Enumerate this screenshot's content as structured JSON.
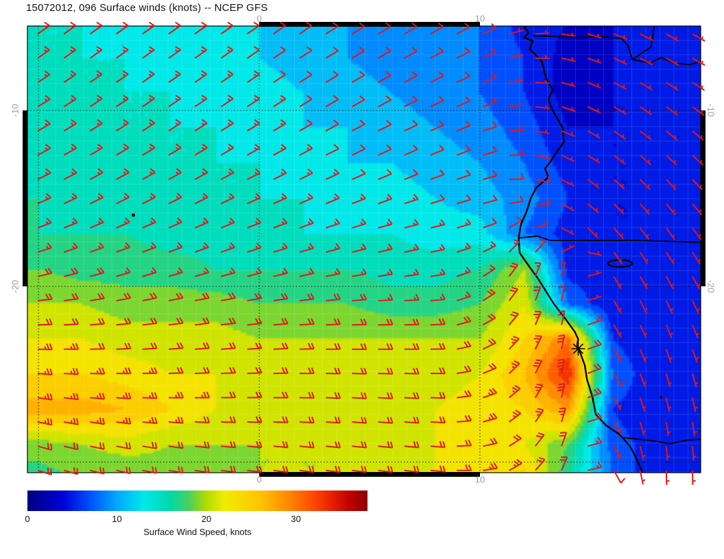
{
  "title": "15072012, 096 Surface winds (knots) -- NCEP GFS",
  "axes": {
    "x_ticks": [
      {
        "label": "0",
        "lon": 0
      },
      {
        "label": "10",
        "lon": 10
      }
    ],
    "y_ticks": [
      {
        "label": "-10",
        "lat": -10
      },
      {
        "label": "-20",
        "lat": -20
      }
    ]
  },
  "colorbar": {
    "caption": "Surface Wind Speed, knots",
    "vmin": 0,
    "vmax": 38,
    "ticks": [
      {
        "label": "0",
        "value": 0
      },
      {
        "label": "10",
        "value": 10
      },
      {
        "label": "20",
        "value": 20
      },
      {
        "label": "30",
        "value": 30
      }
    ],
    "stops": [
      {
        "v": 0,
        "c": "#000080"
      },
      {
        "v": 4,
        "c": "#0000d8"
      },
      {
        "v": 7,
        "c": "#0050ff"
      },
      {
        "v": 10,
        "c": "#00a8ff"
      },
      {
        "v": 13,
        "c": "#00e8e8"
      },
      {
        "v": 16,
        "c": "#00d8a8"
      },
      {
        "v": 18,
        "c": "#48d060"
      },
      {
        "v": 20,
        "c": "#b0dc00"
      },
      {
        "v": 22,
        "c": "#f0ec00"
      },
      {
        "v": 26,
        "c": "#ffc400"
      },
      {
        "v": 29,
        "c": "#ff8c00"
      },
      {
        "v": 32,
        "c": "#ff4800"
      },
      {
        "v": 34,
        "c": "#e62000"
      },
      {
        "v": 36,
        "c": "#c00000"
      },
      {
        "v": 38,
        "c": "#8c0000"
      }
    ]
  },
  "chart_data": {
    "type": "heatmap",
    "field": "surface wind speed (knots) with wind barbs",
    "model": "NCEP GFS",
    "run": "15072012",
    "forecast_hour": "096",
    "geo": {
      "lon_min": -10.5,
      "lon_max": 20.0,
      "lat_min": -30.6,
      "lat_max": -5.2
    },
    "gridlines": {
      "lons": [
        -10,
        0,
        10
      ],
      "lats": [
        -10,
        -20,
        -30
      ]
    },
    "frame_segments": {
      "lon": [
        0,
        10
      ],
      "lat": [
        -20,
        -10
      ]
    },
    "grid_lons": [
      -10,
      -8,
      -6,
      -4,
      -2,
      0,
      2,
      4,
      6,
      8,
      10,
      12,
      14,
      16,
      18
    ],
    "grid_lats": [
      -5,
      -7,
      -9,
      -11,
      -13,
      -15,
      -17,
      -19,
      -21,
      -23,
      -25,
      -27,
      -29,
      -31
    ],
    "speed_knots": [
      [
        14,
        14,
        13,
        13,
        13,
        12,
        11,
        10,
        9,
        9,
        8,
        5,
        4,
        4,
        5
      ],
      [
        14,
        14,
        14,
        13,
        13,
        12,
        11,
        10,
        9,
        8,
        8,
        6,
        3,
        4,
        5
      ],
      [
        15,
        14,
        14,
        14,
        13,
        13,
        12,
        11,
        10,
        9,
        8,
        6,
        3,
        4,
        4
      ],
      [
        15,
        15,
        14,
        14,
        14,
        13,
        12,
        12,
        11,
        10,
        9,
        7,
        4,
        4,
        4
      ],
      [
        15,
        15,
        15,
        14,
        14,
        14,
        13,
        12,
        12,
        11,
        10,
        8,
        5,
        4,
        4
      ],
      [
        16,
        15,
        15,
        15,
        14,
        14,
        14,
        13,
        13,
        12,
        11,
        9,
        6,
        4,
        4
      ],
      [
        16,
        16,
        16,
        15,
        15,
        15,
        14,
        14,
        14,
        13,
        13,
        8,
        5,
        4,
        4
      ],
      [
        18,
        17,
        17,
        17,
        16,
        16,
        16,
        16,
        15,
        15,
        16,
        20,
        5,
        5,
        5
      ],
      [
        20,
        20,
        19,
        19,
        19,
        18,
        18,
        18,
        17,
        17,
        18,
        22,
        8,
        4,
        4
      ],
      [
        22,
        22,
        21,
        21,
        21,
        20,
        20,
        20,
        20,
        20,
        20,
        24,
        30,
        6,
        4
      ],
      [
        24,
        24,
        23,
        22,
        22,
        21,
        21,
        21,
        21,
        21,
        22,
        26,
        34,
        8,
        4
      ],
      [
        27,
        27,
        26,
        24,
        22,
        22,
        21,
        21,
        21,
        22,
        23,
        24,
        28,
        6,
        4
      ],
      [
        19,
        20,
        21,
        20,
        20,
        20,
        20,
        20,
        21,
        22,
        22,
        22,
        18,
        7,
        5
      ],
      [
        17,
        18,
        18,
        19,
        19,
        20,
        20,
        20,
        21,
        22,
        23,
        25,
        16,
        8,
        4
      ]
    ],
    "wind_from_deg": [
      [
        55,
        55,
        55,
        55,
        55,
        55,
        55,
        60,
        60,
        60,
        65,
        80,
        100,
        110,
        120
      ],
      [
        55,
        55,
        55,
        55,
        55,
        56,
        58,
        60,
        60,
        62,
        65,
        85,
        105,
        115,
        120
      ],
      [
        58,
        56,
        55,
        55,
        56,
        57,
        58,
        60,
        62,
        64,
        68,
        90,
        110,
        120,
        125
      ],
      [
        60,
        58,
        57,
        57,
        58,
        58,
        60,
        62,
        64,
        66,
        70,
        95,
        115,
        125,
        130
      ],
      [
        62,
        60,
        60,
        60,
        60,
        62,
        63,
        65,
        66,
        68,
        72,
        100,
        120,
        130,
        135
      ],
      [
        65,
        64,
        63,
        63,
        64,
        65,
        66,
        68,
        70,
        72,
        75,
        90,
        125,
        135,
        140
      ],
      [
        70,
        68,
        67,
        67,
        68,
        70,
        72,
        74,
        76,
        78,
        70,
        45,
        130,
        140,
        145
      ],
      [
        75,
        73,
        72,
        72,
        73,
        74,
        76,
        78,
        80,
        80,
        60,
        25,
        15,
        150,
        150
      ],
      [
        85,
        82,
        80,
        80,
        80,
        82,
        84,
        86,
        88,
        85,
        60,
        25,
        10,
        150,
        155
      ],
      [
        90,
        88,
        86,
        85,
        85,
        86,
        88,
        90,
        90,
        88,
        65,
        30,
        10,
        150,
        160
      ],
      [
        95,
        92,
        90,
        88,
        88,
        88,
        90,
        92,
        92,
        90,
        70,
        35,
        5,
        150,
        165
      ],
      [
        100,
        98,
        95,
        92,
        90,
        90,
        92,
        94,
        94,
        92,
        75,
        40,
        10,
        150,
        170
      ],
      [
        105,
        102,
        100,
        98,
        95,
        95,
        96,
        96,
        96,
        94,
        80,
        45,
        15,
        150,
        175
      ],
      [
        108,
        105,
        102,
        100,
        98,
        98,
        98,
        98,
        98,
        96,
        85,
        50,
        20,
        150,
        180
      ]
    ],
    "coastline": [
      [
        11.7,
        -4.6
      ],
      [
        11.9,
        -5.0
      ],
      [
        12.2,
        -5.6
      ],
      [
        12.0,
        -5.85
      ],
      [
        12.4,
        -6.05
      ],
      [
        12.25,
        -6.5
      ],
      [
        12.8,
        -7.2
      ],
      [
        13.0,
        -8.2
      ],
      [
        13.3,
        -8.8
      ],
      [
        13.1,
        -9.4
      ],
      [
        13.3,
        -10.0
      ],
      [
        13.75,
        -11.0
      ],
      [
        13.8,
        -11.8
      ],
      [
        13.4,
        -12.5
      ],
      [
        13.2,
        -12.9
      ],
      [
        12.95,
        -13.3
      ],
      [
        13.1,
        -13.8
      ],
      [
        12.55,
        -14.4
      ],
      [
        12.3,
        -15.0
      ],
      [
        12.1,
        -15.8
      ],
      [
        11.85,
        -16.5
      ],
      [
        11.75,
        -17.25
      ],
      [
        11.8,
        -18.1
      ],
      [
        12.3,
        -19.0
      ],
      [
        12.6,
        -19.5
      ],
      [
        13.0,
        -20.3
      ],
      [
        13.35,
        -21.0
      ],
      [
        13.9,
        -21.9
      ],
      [
        14.3,
        -22.6
      ],
      [
        14.45,
        -23.0
      ],
      [
        14.4,
        -23.4
      ],
      [
        14.55,
        -23.8
      ],
      [
        14.75,
        -24.5
      ],
      [
        14.85,
        -25.3
      ],
      [
        15.1,
        -26.3
      ],
      [
        15.15,
        -26.65
      ],
      [
        15.25,
        -27.3
      ],
      [
        15.7,
        -27.9
      ],
      [
        16.3,
        -28.4
      ],
      [
        16.45,
        -28.6
      ],
      [
        16.8,
        -29.1
      ],
      [
        17.05,
        -29.7
      ],
      [
        17.3,
        -30.4
      ],
      [
        17.35,
        -30.7
      ]
    ],
    "borders": [
      [
        [
          11.75,
          -17.25
        ],
        [
          12.6,
          -17.15
        ],
        [
          13.2,
          -17.4
        ],
        [
          14.5,
          -17.4
        ],
        [
          16.0,
          -17.4
        ],
        [
          17.2,
          -17.4
        ],
        [
          18.5,
          -17.45
        ],
        [
          20.0,
          -17.5
        ]
      ],
      [
        [
          12.4,
          -5.75
        ],
        [
          13.4,
          -5.8
        ],
        [
          14.4,
          -5.85
        ],
        [
          15.5,
          -5.8
        ],
        [
          16.4,
          -5.9
        ],
        [
          16.7,
          -6.3
        ],
        [
          16.9,
          -7.1
        ],
        [
          17.7,
          -7.3
        ],
        [
          18.2,
          -7.0
        ],
        [
          18.8,
          -7.3
        ],
        [
          19.5,
          -7.4
        ],
        [
          20.0,
          -7.2
        ]
      ],
      [
        [
          17.9,
          -5.2
        ],
        [
          17.75,
          -6.4
        ],
        [
          16.9,
          -7.1
        ]
      ],
      [
        [
          16.45,
          -28.6
        ],
        [
          17.2,
          -28.7
        ],
        [
          17.9,
          -28.8
        ],
        [
          18.6,
          -28.95
        ],
        [
          19.4,
          -28.75
        ],
        [
          20.0,
          -28.7
        ]
      ]
    ],
    "islands": [
      {
        "name": "island-dot",
        "lon": -5.7,
        "lat": -15.95,
        "r": 2.5
      },
      {
        "name": "coastal-islet",
        "lon": 18.2,
        "lat": -26.3,
        "r": 1.8
      }
    ],
    "lake": {
      "name": "salt-pan",
      "lon": 16.35,
      "lat": -18.7,
      "rx_deg": 0.55,
      "ry_deg": 0.2
    },
    "marker": {
      "symbol": "asterisk",
      "lon": 14.45,
      "lat": -23.55
    },
    "barb_color": "#e01818"
  }
}
